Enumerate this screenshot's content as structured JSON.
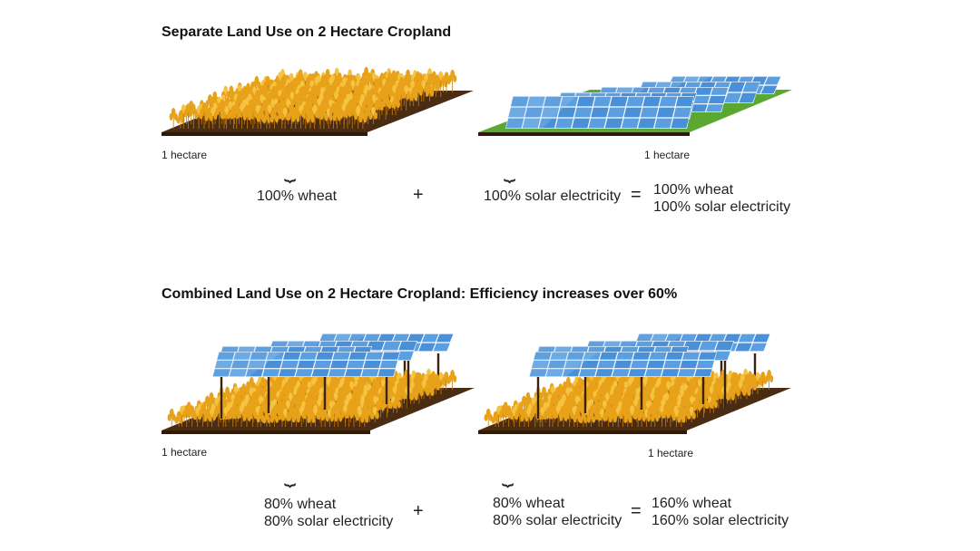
{
  "colors": {
    "soil": "#4a2c12",
    "wheat": "#e8a21a",
    "wheat_light": "#f5c242",
    "grass": "#5aa832",
    "panel": "#4a90d9",
    "panel_light": "#a9d0f5",
    "post": "#3a2410"
  },
  "top": {
    "title": "Separate Land Use on 2 Hectare Cropland",
    "left_area_label": "1 hectare",
    "right_area_label": "1 hectare",
    "left_result": "100% wheat",
    "plus": "+",
    "right_result": "100% solar electricity",
    "equals": "=",
    "total_line1": "100% wheat",
    "total_line2": "100% solar electricity"
  },
  "bottom": {
    "title": "Combined Land Use on 2 Hectare Cropland: Efficiency increases over 60%",
    "left_area_label": "1 hectare",
    "right_area_label": "1 hectare",
    "left_line1": "80% wheat",
    "left_line2": "80% solar electricity",
    "plus": "+",
    "right_line1": "80% wheat",
    "right_line2": "80% solar electricity",
    "equals": "=",
    "total_line1": "160% wheat",
    "total_line2": "160% solar electricity"
  }
}
